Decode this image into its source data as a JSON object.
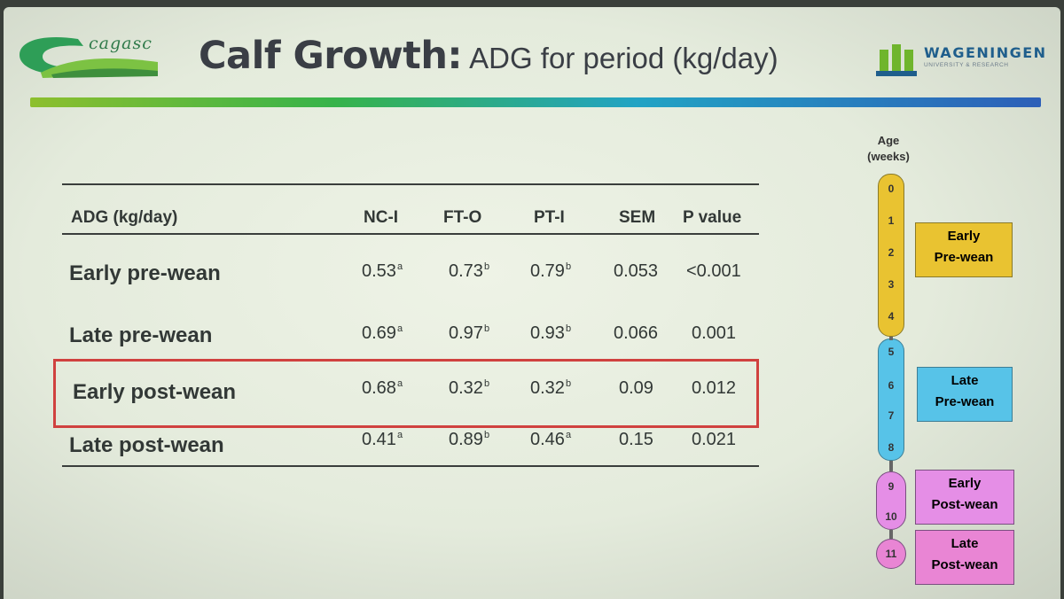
{
  "header": {
    "brand": "cagasc",
    "title_main": "Calf Growth:",
    "title_sub": "ADG for period (kg/day)",
    "partner": "WAGENINGEN",
    "partner_sub": "UNIVERSITY & RESEARCH"
  },
  "table": {
    "columns": [
      "ADG (kg/day)",
      "NC-I",
      "FT-O",
      "PT-I",
      "SEM",
      "P value"
    ],
    "rows": [
      {
        "label": "Early pre-wean",
        "nci": "0.53",
        "nci_s": "a",
        "fto": "0.73",
        "fto_s": "b",
        "pti": "0.79",
        "pti_s": "b",
        "sem": "0.053",
        "p": "<0.001"
      },
      {
        "label": "Late pre-wean",
        "nci": "0.69",
        "nci_s": "a",
        "fto": "0.97",
        "fto_s": "b",
        "pti": "0.93",
        "pti_s": "b",
        "sem": "0.066",
        "p": "0.001"
      },
      {
        "label": "Early post-wean",
        "nci": "0.68",
        "nci_s": "a",
        "fto": "0.32",
        "fto_s": "b",
        "pti": "0.32",
        "pti_s": "b",
        "sem": "0.09",
        "p": "0.012"
      },
      {
        "label": "Late post-wean",
        "nci": "0.41",
        "nci_s": "a",
        "fto": "0.89",
        "fto_s": "b",
        "pti": "0.46",
        "pti_s": "a",
        "sem": "0.15",
        "p": "0.021"
      }
    ]
  },
  "timeline": {
    "age_line1": "Age",
    "age_line2": "(weeks)",
    "weeks": [
      "0",
      "1",
      "2",
      "3",
      "4",
      "5",
      "6",
      "7",
      "8",
      "9",
      "10",
      "11"
    ],
    "periods": [
      {
        "line1": "Early",
        "line2": "Pre-wean"
      },
      {
        "line1": "Late",
        "line2": "Pre-wean"
      },
      {
        "line1": "Early",
        "line2": "Post-wean"
      },
      {
        "line1": "Late",
        "line2": "Post-wean"
      }
    ]
  },
  "colors": {
    "yellow": "#e9c331",
    "blue": "#57c3e8",
    "magenta": "#e58ee6",
    "pink": "#e985d4",
    "highlight": "#d0413f"
  }
}
